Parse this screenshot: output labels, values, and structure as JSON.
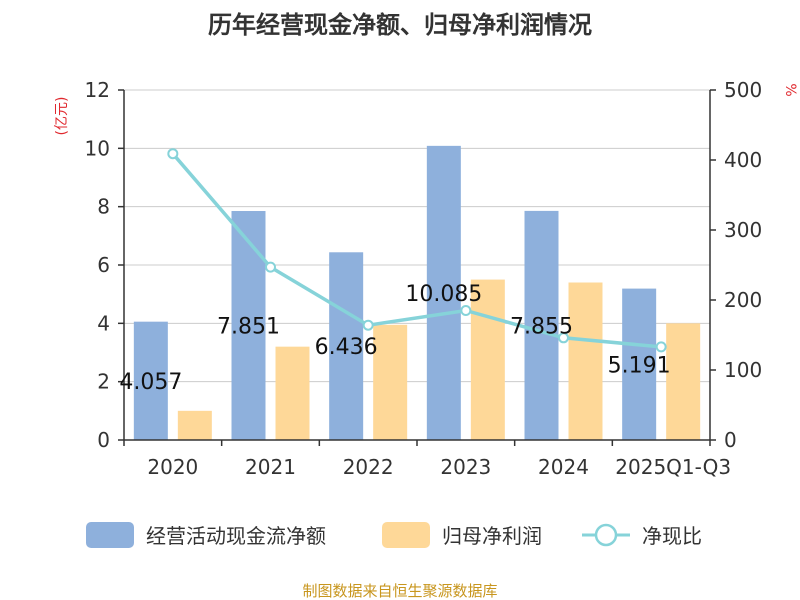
{
  "chart_data": {
    "type": "bar",
    "title": "历年经营现金净额、归母净利润情况",
    "categories": [
      "2020",
      "2021",
      "2022",
      "2023",
      "2024",
      "2025Q1-Q3"
    ],
    "y_left": {
      "unit": "(亿元)",
      "ylim": [
        0,
        12
      ],
      "ticks": [
        "0",
        "2",
        "4",
        "6",
        "8",
        "10",
        "12"
      ]
    },
    "y_right": {
      "unit": "%",
      "ylim": [
        0,
        500
      ],
      "ticks": [
        "0",
        "100",
        "200",
        "300",
        "400",
        "500"
      ]
    },
    "series": [
      {
        "name": "经营活动现金流净额",
        "type": "bar",
        "axis": "left",
        "color": "#8eb0dc",
        "values": [
          4.057,
          7.851,
          6.436,
          10.085,
          7.855,
          5.191
        ],
        "labels": [
          "4.057",
          "7.851",
          "6.436",
          "10.085",
          "7.855",
          "5.191"
        ]
      },
      {
        "name": "归母净利润",
        "type": "bar",
        "axis": "left",
        "color": "#fed898",
        "values": [
          1.0,
          3.2,
          3.95,
          5.5,
          5.4,
          4.0
        ]
      },
      {
        "name": "净现比",
        "type": "line",
        "axis": "right",
        "color": "#86d3d9",
        "values": [
          409,
          247,
          164,
          185,
          146,
          133
        ]
      }
    ],
    "grid": true,
    "legend": "bottom"
  },
  "footer": {
    "source": "制图数据来自恒生聚源数据库"
  }
}
